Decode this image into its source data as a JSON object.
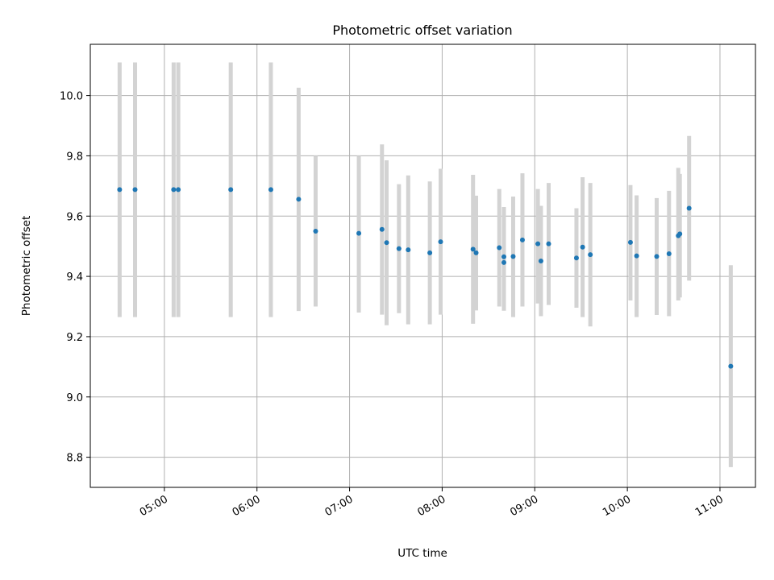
{
  "chart_data": {
    "type": "scatter",
    "title": "Photometric offset variation",
    "xlabel": "UTC time",
    "ylabel": "Photometric offset",
    "x_ticks": [
      "05:00",
      "06:00",
      "07:00",
      "08:00",
      "09:00",
      "10:00",
      "11:00"
    ],
    "y_ticks": [
      "8.8",
      "9.0",
      "9.2",
      "9.4",
      "9.6",
      "9.8",
      "10.0"
    ],
    "xlim": [
      "04:12",
      "11:23"
    ],
    "ylim": [
      8.7,
      10.17
    ],
    "grid": true,
    "errorbar_color": "#d3d3d3",
    "point_color": "#1f77b4",
    "series": [
      {
        "points": [
          {
            "time": "04:31",
            "y": 9.688,
            "lo": 9.265,
            "hi": 10.11
          },
          {
            "time": "04:41",
            "y": 9.688,
            "lo": 9.265,
            "hi": 10.11
          },
          {
            "time": "05:06",
            "y": 9.688,
            "lo": 9.265,
            "hi": 10.11
          },
          {
            "time": "05:09",
            "y": 9.688,
            "lo": 9.265,
            "hi": 10.11
          },
          {
            "time": "05:43",
            "y": 9.688,
            "lo": 9.265,
            "hi": 10.11
          },
          {
            "time": "06:09",
            "y": 9.688,
            "lo": 9.265,
            "hi": 10.11
          },
          {
            "time": "06:27",
            "y": 9.656,
            "lo": 9.285,
            "hi": 10.026
          },
          {
            "time": "06:38",
            "y": 9.55,
            "lo": 9.3,
            "hi": 9.8
          },
          {
            "time": "07:06",
            "y": 9.543,
            "lo": 9.28,
            "hi": 9.8
          },
          {
            "time": "07:21",
            "y": 9.556,
            "lo": 9.273,
            "hi": 9.838
          },
          {
            "time": "07:24",
            "y": 9.512,
            "lo": 9.238,
            "hi": 9.785
          },
          {
            "time": "07:32",
            "y": 9.492,
            "lo": 9.278,
            "hi": 9.706
          },
          {
            "time": "07:38",
            "y": 9.488,
            "lo": 9.241,
            "hi": 9.735
          },
          {
            "time": "07:52",
            "y": 9.478,
            "lo": 9.241,
            "hi": 9.715
          },
          {
            "time": "07:59",
            "y": 9.515,
            "lo": 9.273,
            "hi": 9.757
          },
          {
            "time": "08:20",
            "y": 9.49,
            "lo": 9.243,
            "hi": 9.737
          },
          {
            "time": "08:22",
            "y": 9.478,
            "lo": 9.287,
            "hi": 9.668
          },
          {
            "time": "08:37",
            "y": 9.495,
            "lo": 9.3,
            "hi": 9.69
          },
          {
            "time": "08:40",
            "y": 9.465,
            "lo": 9.3,
            "hi": 9.63
          },
          {
            "time": "08:40",
            "y": 9.446,
            "lo": 9.286,
            "hi": 9.606
          },
          {
            "time": "08:46",
            "y": 9.466,
            "lo": 9.265,
            "hi": 9.665
          },
          {
            "time": "08:52",
            "y": 9.521,
            "lo": 9.3,
            "hi": 9.742
          },
          {
            "time": "09:02",
            "y": 9.508,
            "lo": 9.31,
            "hi": 9.69
          },
          {
            "time": "09:04",
            "y": 9.451,
            "lo": 9.268,
            "hi": 9.634
          },
          {
            "time": "09:09",
            "y": 9.508,
            "lo": 9.305,
            "hi": 9.71
          },
          {
            "time": "09:27",
            "y": 9.461,
            "lo": 9.296,
            "hi": 9.626
          },
          {
            "time": "09:31",
            "y": 9.497,
            "lo": 9.265,
            "hi": 9.729
          },
          {
            "time": "09:36",
            "y": 9.472,
            "lo": 9.234,
            "hi": 9.71
          },
          {
            "time": "10:02",
            "y": 9.513,
            "lo": 9.32,
            "hi": 9.703
          },
          {
            "time": "10:06",
            "y": 9.468,
            "lo": 9.265,
            "hi": 9.669
          },
          {
            "time": "10:19",
            "y": 9.466,
            "lo": 9.272,
            "hi": 9.66
          },
          {
            "time": "10:27",
            "y": 9.475,
            "lo": 9.268,
            "hi": 9.684
          },
          {
            "time": "10:33",
            "y": 9.535,
            "lo": 9.32,
            "hi": 9.76
          },
          {
            "time": "10:34",
            "y": 9.541,
            "lo": 9.33,
            "hi": 9.74
          },
          {
            "time": "10:40",
            "y": 9.626,
            "lo": 9.386,
            "hi": 9.866
          },
          {
            "time": "11:07",
            "y": 9.102,
            "lo": 8.767,
            "hi": 9.437
          }
        ]
      }
    ]
  }
}
